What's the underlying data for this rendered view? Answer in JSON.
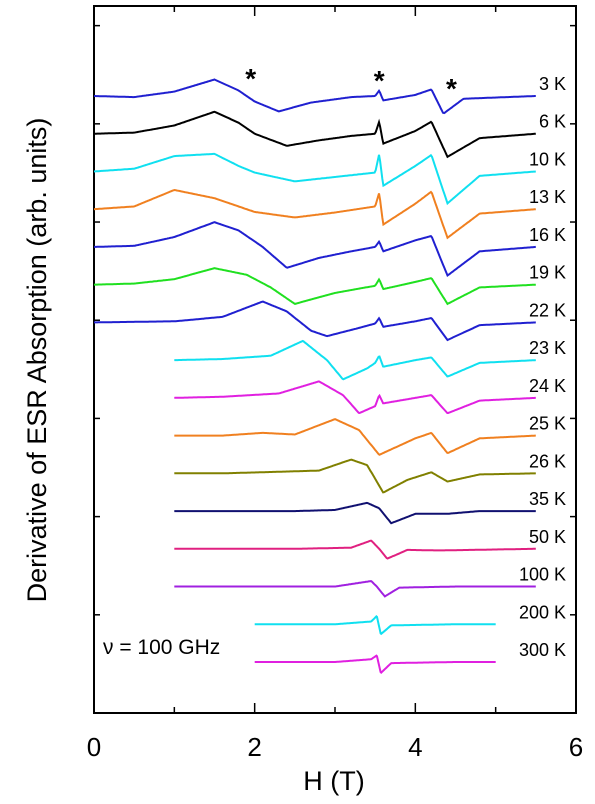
{
  "chart_data": {
    "type": "line",
    "xlabel": "H (T)",
    "ylabel": "Derivative of ESR Absorption (arb. units)",
    "xlim": [
      0,
      6
    ],
    "x_ticks": [
      "0",
      "2",
      "4",
      "6"
    ],
    "annotation": "ν = 100 GHz",
    "markers": [
      {
        "symbol": "*",
        "x": 1.95
      },
      {
        "symbol": "*",
        "x": 3.55
      },
      {
        "symbol": "*",
        "x": 4.45
      }
    ],
    "series": [
      {
        "name": "3 K",
        "color": "#2020d0",
        "x_range": [
          0,
          5.5
        ],
        "points": [
          [
            0,
            0
          ],
          [
            0.5,
            -0.02
          ],
          [
            1.0,
            0.08
          ],
          [
            1.5,
            0.3
          ],
          [
            1.8,
            0.1
          ],
          [
            2.0,
            -0.1
          ],
          [
            2.3,
            -0.28
          ],
          [
            2.7,
            -0.12
          ],
          [
            3.2,
            -0.02
          ],
          [
            3.5,
            0
          ],
          [
            3.55,
            0.1
          ],
          [
            3.6,
            -0.08
          ],
          [
            4.0,
            0.02
          ],
          [
            4.2,
            0.12
          ],
          [
            4.35,
            -0.32
          ],
          [
            4.6,
            -0.05
          ],
          [
            5.5,
            0
          ]
        ]
      },
      {
        "name": "6 K",
        "color": "#000000",
        "x_range": [
          0,
          5.5
        ],
        "points": [
          [
            0,
            0
          ],
          [
            0.5,
            0.02
          ],
          [
            1.0,
            0.15
          ],
          [
            1.5,
            0.4
          ],
          [
            1.8,
            0.2
          ],
          [
            2.0,
            0
          ],
          [
            2.4,
            -0.22
          ],
          [
            2.8,
            -0.12
          ],
          [
            3.2,
            -0.04
          ],
          [
            3.5,
            0
          ],
          [
            3.55,
            0.22
          ],
          [
            3.6,
            -0.18
          ],
          [
            4.0,
            0.05
          ],
          [
            4.2,
            0.22
          ],
          [
            4.4,
            -0.42
          ],
          [
            4.8,
            -0.08
          ],
          [
            5.5,
            0
          ]
        ]
      },
      {
        "name": "10 K",
        "color": "#10e0f0",
        "x_range": [
          0,
          5.5
        ],
        "points": [
          [
            0,
            0
          ],
          [
            0.5,
            0.05
          ],
          [
            1.0,
            0.28
          ],
          [
            1.5,
            0.32
          ],
          [
            1.8,
            0.1
          ],
          [
            2.0,
            -0.02
          ],
          [
            2.5,
            -0.18
          ],
          [
            3.0,
            -0.1
          ],
          [
            3.5,
            -0.02
          ],
          [
            3.55,
            0.32
          ],
          [
            3.6,
            -0.26
          ],
          [
            4.0,
            0.1
          ],
          [
            4.2,
            0.3
          ],
          [
            4.4,
            -0.58
          ],
          [
            4.8,
            -0.08
          ],
          [
            5.5,
            0
          ]
        ]
      },
      {
        "name": "13 K",
        "color": "#f08020",
        "x_range": [
          0,
          5.5
        ],
        "points": [
          [
            0,
            0
          ],
          [
            0.5,
            0.05
          ],
          [
            1.0,
            0.35
          ],
          [
            1.5,
            0.2
          ],
          [
            2.0,
            -0.05
          ],
          [
            2.5,
            -0.15
          ],
          [
            3.0,
            -0.06
          ],
          [
            3.5,
            0.05
          ],
          [
            3.55,
            0.3
          ],
          [
            3.6,
            -0.28
          ],
          [
            4.0,
            0.1
          ],
          [
            4.2,
            0.32
          ],
          [
            4.4,
            -0.52
          ],
          [
            4.8,
            -0.08
          ],
          [
            5.5,
            0
          ]
        ]
      },
      {
        "name": "16 K",
        "color": "#2020d0",
        "x_range": [
          0,
          5.5
        ],
        "points": [
          [
            0,
            0
          ],
          [
            0.5,
            0.02
          ],
          [
            1.0,
            0.18
          ],
          [
            1.5,
            0.45
          ],
          [
            1.8,
            0.3
          ],
          [
            2.1,
            0
          ],
          [
            2.4,
            -0.38
          ],
          [
            2.8,
            -0.2
          ],
          [
            3.2,
            -0.08
          ],
          [
            3.5,
            0
          ],
          [
            3.55,
            0.1
          ],
          [
            3.6,
            -0.08
          ],
          [
            4.0,
            0.12
          ],
          [
            4.2,
            0.2
          ],
          [
            4.4,
            -0.52
          ],
          [
            4.8,
            -0.08
          ],
          [
            5.5,
            0
          ]
        ]
      },
      {
        "name": "19 K",
        "color": "#20e020",
        "x_range": [
          0,
          5.5
        ],
        "points": [
          [
            0,
            0
          ],
          [
            0.5,
            0.02
          ],
          [
            1.0,
            0.1
          ],
          [
            1.5,
            0.3
          ],
          [
            1.9,
            0.18
          ],
          [
            2.2,
            -0.05
          ],
          [
            2.5,
            -0.35
          ],
          [
            3.0,
            -0.15
          ],
          [
            3.5,
            -0.02
          ],
          [
            3.55,
            0.1
          ],
          [
            3.6,
            -0.08
          ],
          [
            4.0,
            0.05
          ],
          [
            4.2,
            0.12
          ],
          [
            4.4,
            -0.35
          ],
          [
            4.8,
            -0.05
          ],
          [
            5.5,
            0
          ]
        ]
      },
      {
        "name": "22 K",
        "color": "#2020d0",
        "x_range": [
          0,
          5.5
        ],
        "points": [
          [
            0,
            0
          ],
          [
            1.0,
            0.02
          ],
          [
            1.6,
            0.1
          ],
          [
            2.1,
            0.38
          ],
          [
            2.4,
            0.2
          ],
          [
            2.7,
            -0.15
          ],
          [
            2.9,
            -0.25
          ],
          [
            3.3,
            -0.1
          ],
          [
            3.5,
            -0.02
          ],
          [
            3.55,
            0.08
          ],
          [
            3.6,
            -0.08
          ],
          [
            4.0,
            0.02
          ],
          [
            4.2,
            0.08
          ],
          [
            4.4,
            -0.32
          ],
          [
            4.8,
            -0.05
          ],
          [
            5.5,
            0
          ]
        ]
      },
      {
        "name": "23 K",
        "color": "#10e0f0",
        "x_range": [
          1.0,
          5.5
        ],
        "points": [
          [
            1.0,
            0
          ],
          [
            1.6,
            0.02
          ],
          [
            2.2,
            0.08
          ],
          [
            2.6,
            0.35
          ],
          [
            2.9,
            0
          ],
          [
            3.1,
            -0.35
          ],
          [
            3.4,
            -0.15
          ],
          [
            3.5,
            -0.05
          ],
          [
            3.55,
            0.08
          ],
          [
            3.6,
            -0.12
          ],
          [
            4.0,
            0
          ],
          [
            4.2,
            0.05
          ],
          [
            4.4,
            -0.3
          ],
          [
            4.8,
            -0.05
          ],
          [
            5.5,
            0
          ]
        ]
      },
      {
        "name": "24 K",
        "color": "#e020e0",
        "x_range": [
          1.0,
          5.5
        ],
        "points": [
          [
            1.0,
            0
          ],
          [
            1.6,
            0.02
          ],
          [
            2.3,
            0.08
          ],
          [
            2.8,
            0.3
          ],
          [
            3.1,
            0.05
          ],
          [
            3.3,
            -0.28
          ],
          [
            3.5,
            -0.15
          ],
          [
            3.55,
            0.05
          ],
          [
            3.6,
            -0.1
          ],
          [
            4.0,
            0
          ],
          [
            4.2,
            0.05
          ],
          [
            4.4,
            -0.28
          ],
          [
            4.8,
            -0.05
          ],
          [
            5.5,
            0
          ]
        ]
      },
      {
        "name": "25 K",
        "color": "#f08020",
        "x_range": [
          1.0,
          5.5
        ],
        "points": [
          [
            1.0,
            0
          ],
          [
            1.6,
            0
          ],
          [
            2.1,
            0.05
          ],
          [
            2.5,
            0.02
          ],
          [
            3.0,
            0.3
          ],
          [
            3.3,
            0.1
          ],
          [
            3.55,
            -0.35
          ],
          [
            3.7,
            -0.25
          ],
          [
            4.0,
            -0.05
          ],
          [
            4.2,
            0.05
          ],
          [
            4.4,
            -0.32
          ],
          [
            4.8,
            -0.05
          ],
          [
            5.5,
            0
          ]
        ]
      },
      {
        "name": "26 K",
        "color": "#808000",
        "x_range": [
          1.0,
          5.5
        ],
        "points": [
          [
            1.0,
            0
          ],
          [
            1.6,
            0
          ],
          [
            2.1,
            0.02
          ],
          [
            2.8,
            0.05
          ],
          [
            3.2,
            0.25
          ],
          [
            3.4,
            0.15
          ],
          [
            3.6,
            -0.35
          ],
          [
            3.9,
            -0.12
          ],
          [
            4.2,
            0.02
          ],
          [
            4.4,
            -0.15
          ],
          [
            4.8,
            -0.02
          ],
          [
            5.5,
            0
          ]
        ]
      },
      {
        "name": "35 K",
        "color": "#101070",
        "x_range": [
          1.0,
          5.5
        ],
        "points": [
          [
            1.0,
            0
          ],
          [
            2.5,
            0
          ],
          [
            3.0,
            0.02
          ],
          [
            3.4,
            0.15
          ],
          [
            3.55,
            0.05
          ],
          [
            3.7,
            -0.22
          ],
          [
            4.0,
            -0.05
          ],
          [
            4.4,
            -0.05
          ],
          [
            4.8,
            0
          ],
          [
            5.5,
            0
          ]
        ]
      },
      {
        "name": "50 K",
        "color": "#e02080",
        "x_range": [
          1.0,
          5.5
        ],
        "points": [
          [
            1.0,
            0
          ],
          [
            2.5,
            0
          ],
          [
            3.2,
            0.02
          ],
          [
            3.45,
            0.15
          ],
          [
            3.55,
            0
          ],
          [
            3.65,
            -0.18
          ],
          [
            3.9,
            -0.02
          ],
          [
            4.3,
            -0.03
          ],
          [
            5.5,
            0
          ]
        ]
      },
      {
        "name": "100 K",
        "color": "#a020e0",
        "x_range": [
          1.0,
          5.5
        ],
        "points": [
          [
            1.0,
            0
          ],
          [
            3.0,
            0
          ],
          [
            3.45,
            0.1
          ],
          [
            3.52,
            0
          ],
          [
            3.62,
            -0.18
          ],
          [
            3.8,
            -0.02
          ],
          [
            4.5,
            0
          ],
          [
            5.5,
            0
          ]
        ]
      },
      {
        "name": "200 K",
        "color": "#10e0f0",
        "x_range": [
          2.0,
          5.0
        ],
        "points": [
          [
            2.0,
            0
          ],
          [
            3.0,
            0
          ],
          [
            3.45,
            0.05
          ],
          [
            3.52,
            0.15
          ],
          [
            3.57,
            -0.18
          ],
          [
            3.7,
            -0.02
          ],
          [
            4.5,
            0
          ],
          [
            5.0,
            0
          ]
        ]
      },
      {
        "name": "300 K",
        "color": "#e020e0",
        "x_range": [
          2.0,
          5.0
        ],
        "points": [
          [
            2.0,
            0
          ],
          [
            3.0,
            0
          ],
          [
            3.45,
            0.05
          ],
          [
            3.52,
            0.12
          ],
          [
            3.57,
            -0.2
          ],
          [
            3.7,
            -0.02
          ],
          [
            4.5,
            0
          ],
          [
            5.0,
            0
          ]
        ]
      }
    ]
  }
}
